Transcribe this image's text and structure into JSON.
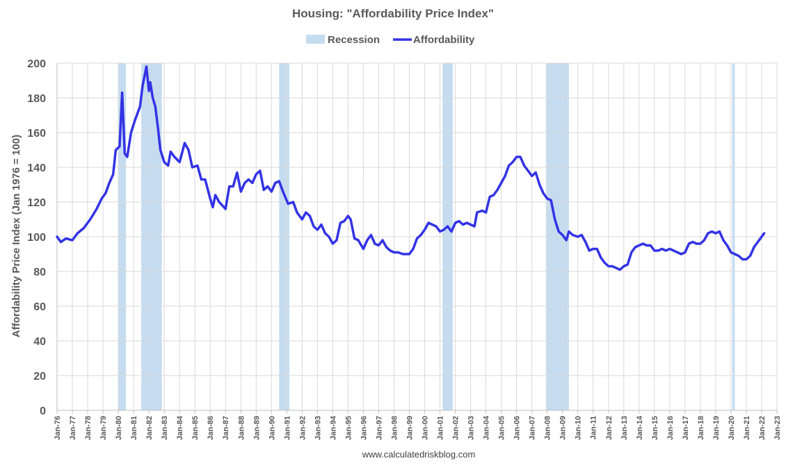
{
  "chart_data": {
    "type": "line",
    "title": "Housing: \"Affordability Price Index\"",
    "ylabel": "Affordability Price Index (Jan 1976 = 100)",
    "xlabel": "",
    "source": "www.calculatedriskblog.com",
    "ylim": [
      0,
      200
    ],
    "xlim": [
      "1976-01",
      "2023-01"
    ],
    "grid": true,
    "legend_position": "top",
    "yticks": [
      "0",
      "20",
      "40",
      "60",
      "80",
      "100",
      "120",
      "140",
      "160",
      "180",
      "200"
    ],
    "xticks": [
      "Jan-76",
      "Jan-77",
      "Jan-78",
      "Jan-79",
      "Jan-80",
      "Jan-81",
      "Jan-82",
      "Jan-83",
      "Jan-84",
      "Jan-85",
      "Jan-86",
      "Jan-87",
      "Jan-88",
      "Jan-89",
      "Jan-90",
      "Jan-91",
      "Jan-92",
      "Jan-93",
      "Jan-94",
      "Jan-95",
      "Jan-96",
      "Jan-97",
      "Jan-98",
      "Jan-99",
      "Jan-00",
      "Jan-01",
      "Jan-02",
      "Jan-03",
      "Jan-04",
      "Jan-05",
      "Jan-06",
      "Jan-07",
      "Jan-08",
      "Jan-09",
      "Jan-10",
      "Jan-11",
      "Jan-12",
      "Jan-13",
      "Jan-14",
      "Jan-15",
      "Jan-16",
      "Jan-17",
      "Jan-18",
      "Jan-19",
      "Jan-20",
      "Jan-21",
      "Jan-22",
      "Jan-23"
    ],
    "legend": [
      {
        "label": "Recession",
        "type": "area",
        "color": "#c5dcf0"
      },
      {
        "label": "Affordability",
        "type": "line",
        "color": "#3333e6"
      }
    ],
    "recessions": [
      {
        "start": "1980-01",
        "end": "1980-07"
      },
      {
        "start": "1981-07",
        "end": "1982-11"
      },
      {
        "start": "1990-07",
        "end": "1991-03"
      },
      {
        "start": "2001-03",
        "end": "2001-11"
      },
      {
        "start": "2007-12",
        "end": "2009-06"
      },
      {
        "start": "2020-02",
        "end": "2020-04"
      }
    ],
    "series": [
      {
        "name": "Affordability",
        "color": "#3333e6",
        "points": [
          [
            "1976-01",
            100
          ],
          [
            "1976-04",
            97
          ],
          [
            "1976-08",
            99
          ],
          [
            "1977-01",
            98
          ],
          [
            "1977-05",
            102
          ],
          [
            "1977-10",
            105
          ],
          [
            "1978-03",
            110
          ],
          [
            "1978-08",
            116
          ],
          [
            "1978-12",
            122
          ],
          [
            "1979-03",
            125
          ],
          [
            "1979-06",
            131
          ],
          [
            "1979-09",
            136
          ],
          [
            "1979-11",
            150
          ],
          [
            "1980-02",
            152
          ],
          [
            "1980-04",
            183
          ],
          [
            "1980-06",
            148
          ],
          [
            "1980-08",
            146
          ],
          [
            "1980-11",
            160
          ],
          [
            "1981-02",
            167
          ],
          [
            "1981-06",
            175
          ],
          [
            "1981-08",
            187
          ],
          [
            "1981-11",
            198
          ],
          [
            "1982-01",
            184
          ],
          [
            "1982-02",
            189
          ],
          [
            "1982-04",
            180
          ],
          [
            "1982-06",
            175
          ],
          [
            "1982-08",
            163
          ],
          [
            "1982-10",
            150
          ],
          [
            "1983-01",
            143
          ],
          [
            "1983-04",
            141
          ],
          [
            "1983-06",
            149
          ],
          [
            "1983-09",
            146
          ],
          [
            "1984-01",
            143
          ],
          [
            "1984-05",
            154
          ],
          [
            "1984-08",
            150
          ],
          [
            "1984-11",
            140
          ],
          [
            "1985-03",
            141
          ],
          [
            "1985-06",
            133
          ],
          [
            "1985-09",
            133
          ],
          [
            "1986-01",
            122
          ],
          [
            "1986-03",
            117
          ],
          [
            "1986-05",
            124
          ],
          [
            "1986-08",
            120
          ],
          [
            "1987-01",
            116
          ],
          [
            "1987-04",
            129
          ],
          [
            "1987-07",
            129
          ],
          [
            "1987-10",
            137
          ],
          [
            "1988-01",
            126
          ],
          [
            "1988-04",
            131
          ],
          [
            "1988-07",
            133
          ],
          [
            "1988-10",
            131
          ],
          [
            "1989-01",
            136
          ],
          [
            "1989-04",
            138
          ],
          [
            "1989-07",
            127
          ],
          [
            "1989-10",
            129
          ],
          [
            "1990-01",
            126
          ],
          [
            "1990-04",
            131
          ],
          [
            "1990-07",
            132
          ],
          [
            "1990-10",
            126
          ],
          [
            "1991-02",
            119
          ],
          [
            "1991-06",
            120
          ],
          [
            "1991-09",
            114
          ],
          [
            "1992-01",
            110
          ],
          [
            "1992-04",
            114
          ],
          [
            "1992-07",
            112
          ],
          [
            "1992-10",
            106
          ],
          [
            "1993-01",
            104
          ],
          [
            "1993-04",
            107
          ],
          [
            "1993-07",
            102
          ],
          [
            "1993-10",
            100
          ],
          [
            "1994-01",
            96
          ],
          [
            "1994-04",
            98
          ],
          [
            "1994-07",
            108
          ],
          [
            "1994-10",
            109
          ],
          [
            "1995-01",
            112
          ],
          [
            "1995-03",
            110
          ],
          [
            "1995-06",
            99
          ],
          [
            "1995-09",
            98
          ],
          [
            "1996-01",
            93
          ],
          [
            "1996-04",
            98
          ],
          [
            "1996-07",
            101
          ],
          [
            "1996-10",
            96
          ],
          [
            "1997-01",
            95
          ],
          [
            "1997-04",
            98
          ],
          [
            "1997-07",
            94
          ],
          [
            "1997-10",
            92
          ],
          [
            "1998-01",
            91
          ],
          [
            "1998-04",
            91
          ],
          [
            "1998-08",
            90
          ],
          [
            "1999-01",
            90
          ],
          [
            "1999-04",
            93
          ],
          [
            "1999-07",
            99
          ],
          [
            "1999-10",
            101
          ],
          [
            "2000-01",
            104
          ],
          [
            "2000-04",
            108
          ],
          [
            "2000-07",
            107
          ],
          [
            "2000-10",
            106
          ],
          [
            "2001-01",
            103
          ],
          [
            "2001-04",
            104
          ],
          [
            "2001-07",
            106
          ],
          [
            "2001-10",
            103
          ],
          [
            "2002-01",
            108
          ],
          [
            "2002-04",
            109
          ],
          [
            "2002-07",
            107
          ],
          [
            "2002-10",
            108
          ],
          [
            "2003-01",
            107
          ],
          [
            "2003-04",
            106
          ],
          [
            "2003-06",
            114
          ],
          [
            "2003-10",
            115
          ],
          [
            "2004-01",
            114
          ],
          [
            "2004-04",
            123
          ],
          [
            "2004-07",
            124
          ],
          [
            "2004-10",
            127
          ],
          [
            "2005-01",
            131
          ],
          [
            "2005-04",
            135
          ],
          [
            "2005-07",
            141
          ],
          [
            "2005-10",
            143
          ],
          [
            "2006-01",
            146
          ],
          [
            "2006-04",
            146
          ],
          [
            "2006-07",
            141
          ],
          [
            "2006-10",
            138
          ],
          [
            "2007-01",
            135
          ],
          [
            "2007-04",
            137
          ],
          [
            "2007-07",
            130
          ],
          [
            "2007-10",
            125
          ],
          [
            "2008-01",
            122
          ],
          [
            "2008-04",
            121
          ],
          [
            "2008-07",
            110
          ],
          [
            "2008-10",
            103
          ],
          [
            "2009-01",
            101
          ],
          [
            "2009-04",
            98
          ],
          [
            "2009-06",
            103
          ],
          [
            "2009-09",
            101
          ],
          [
            "2010-01",
            100
          ],
          [
            "2010-04",
            101
          ],
          [
            "2010-07",
            97
          ],
          [
            "2010-10",
            92
          ],
          [
            "2011-01",
            93
          ],
          [
            "2011-04",
            93
          ],
          [
            "2011-07",
            88
          ],
          [
            "2011-10",
            85
          ],
          [
            "2012-01",
            83
          ],
          [
            "2012-04",
            83
          ],
          [
            "2012-07",
            82
          ],
          [
            "2012-10",
            81
          ],
          [
            "2013-01",
            83
          ],
          [
            "2013-04",
            84
          ],
          [
            "2013-07",
            91
          ],
          [
            "2013-10",
            94
          ],
          [
            "2014-01",
            95
          ],
          [
            "2014-04",
            96
          ],
          [
            "2014-07",
            95
          ],
          [
            "2014-10",
            95
          ],
          [
            "2015-01",
            92
          ],
          [
            "2015-04",
            92
          ],
          [
            "2015-07",
            93
          ],
          [
            "2015-10",
            92
          ],
          [
            "2016-01",
            93
          ],
          [
            "2016-04",
            92
          ],
          [
            "2016-07",
            91
          ],
          [
            "2016-10",
            90
          ],
          [
            "2017-01",
            91
          ],
          [
            "2017-04",
            96
          ],
          [
            "2017-07",
            97
          ],
          [
            "2017-10",
            96
          ],
          [
            "2018-01",
            96
          ],
          [
            "2018-04",
            98
          ],
          [
            "2018-07",
            102
          ],
          [
            "2018-10",
            103
          ],
          [
            "2019-01",
            102
          ],
          [
            "2019-04",
            103
          ],
          [
            "2019-07",
            98
          ],
          [
            "2019-10",
            95
          ],
          [
            "2020-01",
            91
          ],
          [
            "2020-04",
            90
          ],
          [
            "2020-07",
            89
          ],
          [
            "2020-10",
            87
          ],
          [
            "2021-01",
            87
          ],
          [
            "2021-04",
            89
          ],
          [
            "2021-07",
            94
          ],
          [
            "2021-10",
            97
          ],
          [
            "2022-01",
            100
          ],
          [
            "2022-03",
            102
          ]
        ]
      }
    ]
  }
}
